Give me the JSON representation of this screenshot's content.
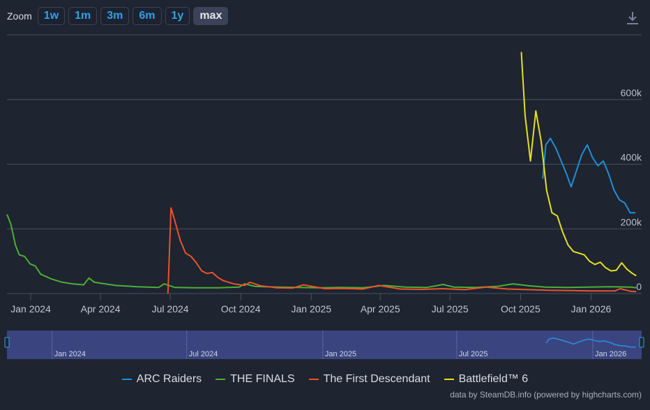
{
  "toolbar": {
    "zoom_label": "Zoom",
    "buttons": [
      "1w",
      "1m",
      "3m",
      "6m",
      "1y",
      "max"
    ],
    "active": "max"
  },
  "download_icon": "download-icon",
  "colors": {
    "background": "#1e2430",
    "grid": "#4a5260",
    "navigator_bg": "#3a4580",
    "ARC Raiders": "#1f8fd6",
    "THE FINALS": "#4caf35",
    "The First Descendant": "#e8542a",
    "Battlefield™ 6": "#e6e01e"
  },
  "credits": "data by SteamDB.info (powered by highcharts.com)",
  "chart_data": {
    "type": "line",
    "title": "",
    "xlabel": "",
    "ylabel": "",
    "xlim": [
      "2023-12-01",
      "2026-03-08"
    ],
    "ylim": [
      0,
      800000
    ],
    "y_ticks": [
      0,
      200000,
      400000,
      600000
    ],
    "y_tick_labels": [
      "0",
      "200k",
      "400k",
      "600k"
    ],
    "x_ticks": [
      "2024-01-01",
      "2024-04-01",
      "2024-07-01",
      "2024-10-01",
      "2025-01-01",
      "2025-04-01",
      "2025-07-01",
      "2025-10-01",
      "2026-01-01"
    ],
    "x_tick_labels": [
      "Jan 2024",
      "Apr 2024",
      "Jul 2024",
      "Oct 2024",
      "Jan 2025",
      "Apr 2025",
      "Jul 2025",
      "Oct 2025",
      "Jan 2026"
    ],
    "navigator_labels": [
      "Jan 2024",
      "Jul 2024",
      "Jan 2025",
      "Jul 2025",
      "Jan 2026"
    ],
    "grid": true,
    "legend_position": "bottom",
    "series": [
      {
        "name": "ARC Raiders",
        "color": "#1f8fd6",
        "points": [
          [
            "2025-10-30",
            355000
          ],
          [
            "2025-11-03",
            460000
          ],
          [
            "2025-11-09",
            480000
          ],
          [
            "2025-11-16",
            450000
          ],
          [
            "2025-11-23",
            410000
          ],
          [
            "2025-11-30",
            370000
          ],
          [
            "2025-12-06",
            330000
          ],
          [
            "2025-12-13",
            380000
          ],
          [
            "2025-12-20",
            430000
          ],
          [
            "2025-12-27",
            460000
          ],
          [
            "2026-01-03",
            420000
          ],
          [
            "2026-01-10",
            395000
          ],
          [
            "2026-01-17",
            410000
          ],
          [
            "2026-01-24",
            370000
          ],
          [
            "2026-01-31",
            320000
          ],
          [
            "2026-02-07",
            290000
          ],
          [
            "2026-02-14",
            280000
          ],
          [
            "2026-02-21",
            250000
          ],
          [
            "2026-02-28",
            250000
          ]
        ]
      },
      {
        "name": "THE FINALS",
        "color": "#4caf35",
        "points": [
          [
            "2023-12-01",
            245000
          ],
          [
            "2023-12-06",
            215000
          ],
          [
            "2023-12-12",
            150000
          ],
          [
            "2023-12-17",
            120000
          ],
          [
            "2023-12-24",
            115000
          ],
          [
            "2023-12-31",
            92000
          ],
          [
            "2024-01-07",
            85000
          ],
          [
            "2024-01-14",
            60000
          ],
          [
            "2024-01-28",
            45000
          ],
          [
            "2024-02-11",
            35000
          ],
          [
            "2024-02-25",
            30000
          ],
          [
            "2024-03-10",
            27000
          ],
          [
            "2024-03-17",
            48000
          ],
          [
            "2024-03-24",
            35000
          ],
          [
            "2024-04-07",
            30000
          ],
          [
            "2024-04-21",
            25000
          ],
          [
            "2024-05-05",
            23000
          ],
          [
            "2024-05-19",
            21000
          ],
          [
            "2024-06-02",
            20000
          ],
          [
            "2024-06-16",
            19000
          ],
          [
            "2024-06-23",
            30000
          ],
          [
            "2024-07-07",
            19000
          ],
          [
            "2024-08-04",
            18000
          ],
          [
            "2024-09-01",
            18000
          ],
          [
            "2024-09-29",
            20000
          ],
          [
            "2024-10-06",
            30000
          ],
          [
            "2024-10-20",
            22000
          ],
          [
            "2024-11-17",
            20000
          ],
          [
            "2024-12-15",
            19000
          ],
          [
            "2025-01-12",
            18000
          ],
          [
            "2025-02-09",
            19000
          ],
          [
            "2025-03-09",
            18000
          ],
          [
            "2025-04-06",
            25000
          ],
          [
            "2025-05-04",
            20000
          ],
          [
            "2025-06-01",
            19000
          ],
          [
            "2025-06-22",
            28000
          ],
          [
            "2025-07-06",
            20000
          ],
          [
            "2025-08-03",
            19000
          ],
          [
            "2025-08-31",
            22000
          ],
          [
            "2025-09-21",
            30000
          ],
          [
            "2025-10-12",
            24000
          ],
          [
            "2025-11-02",
            20000
          ],
          [
            "2025-11-30",
            19000
          ],
          [
            "2025-12-28",
            20000
          ],
          [
            "2026-01-25",
            21000
          ],
          [
            "2026-02-22",
            20000
          ],
          [
            "2026-03-01",
            18000
          ]
        ]
      },
      {
        "name": "The First Descendant",
        "color": "#e8542a",
        "points": [
          [
            "2024-06-28",
            0
          ],
          [
            "2024-07-02",
            265000
          ],
          [
            "2024-07-07",
            225000
          ],
          [
            "2024-07-14",
            165000
          ],
          [
            "2024-07-21",
            125000
          ],
          [
            "2024-07-28",
            115000
          ],
          [
            "2024-08-04",
            95000
          ],
          [
            "2024-08-11",
            70000
          ],
          [
            "2024-08-18",
            62000
          ],
          [
            "2024-08-25",
            65000
          ],
          [
            "2024-09-01",
            50000
          ],
          [
            "2024-09-08",
            40000
          ],
          [
            "2024-09-22",
            30000
          ],
          [
            "2024-10-06",
            25000
          ],
          [
            "2024-10-13",
            35000
          ],
          [
            "2024-10-27",
            24000
          ],
          [
            "2024-11-17",
            18000
          ],
          [
            "2024-12-08",
            17000
          ],
          [
            "2024-12-22",
            27000
          ],
          [
            "2025-01-19",
            15000
          ],
          [
            "2025-02-09",
            16000
          ],
          [
            "2025-03-09",
            14000
          ],
          [
            "2025-03-30",
            25000
          ],
          [
            "2025-04-27",
            14000
          ],
          [
            "2025-05-25",
            13000
          ],
          [
            "2025-06-22",
            15000
          ],
          [
            "2025-07-20",
            12000
          ],
          [
            "2025-08-17",
            20000
          ],
          [
            "2025-09-14",
            14000
          ],
          [
            "2025-10-12",
            12000
          ],
          [
            "2025-11-09",
            10000
          ],
          [
            "2025-12-07",
            9000
          ],
          [
            "2026-01-04",
            8000
          ],
          [
            "2026-02-01",
            8000
          ],
          [
            "2026-02-08",
            15000
          ],
          [
            "2026-02-22",
            7000
          ],
          [
            "2026-03-01",
            6000
          ]
        ]
      },
      {
        "name": "Battlefield™ 6",
        "color": "#e6e01e",
        "points": [
          [
            "2025-10-02",
            747000
          ],
          [
            "2025-10-07",
            550000
          ],
          [
            "2025-10-14",
            410000
          ],
          [
            "2025-10-21",
            565000
          ],
          [
            "2025-10-28",
            470000
          ],
          [
            "2025-11-04",
            320000
          ],
          [
            "2025-11-11",
            250000
          ],
          [
            "2025-11-18",
            240000
          ],
          [
            "2025-11-25",
            190000
          ],
          [
            "2025-12-02",
            150000
          ],
          [
            "2025-12-09",
            130000
          ],
          [
            "2025-12-16",
            125000
          ],
          [
            "2025-12-23",
            120000
          ],
          [
            "2025-12-30",
            100000
          ],
          [
            "2026-01-06",
            90000
          ],
          [
            "2026-01-13",
            97000
          ],
          [
            "2026-01-20",
            80000
          ],
          [
            "2026-01-27",
            70000
          ],
          [
            "2026-02-03",
            72000
          ],
          [
            "2026-02-10",
            95000
          ],
          [
            "2026-02-17",
            75000
          ],
          [
            "2026-02-24",
            62000
          ],
          [
            "2026-03-01",
            55000
          ]
        ]
      }
    ]
  }
}
